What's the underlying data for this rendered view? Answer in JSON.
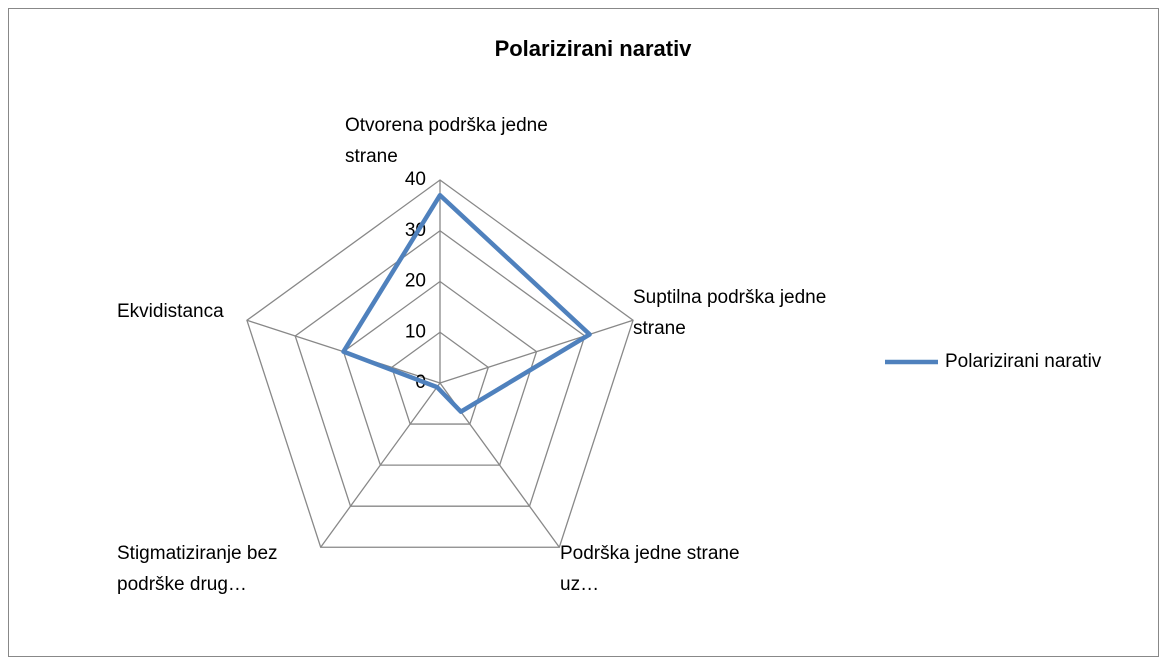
{
  "chart_data": {
    "type": "radar",
    "title": "Polarizirani narativ",
    "categories": [
      "Otvorena podrška jedne strane",
      "Suptilna podrška jedne strane",
      "Podrška jedne strane uz…",
      "Stigmatiziranje bez podrške drug…",
      "Ekvidistanca"
    ],
    "series": [
      {
        "name": "Polarizirani narativ",
        "color": "#4f81bd",
        "values": [
          37,
          31,
          7,
          1,
          20
        ]
      }
    ],
    "ylim": [
      0,
      40
    ],
    "yticks": [
      0,
      10,
      20,
      30,
      40
    ],
    "grid": true,
    "legend": "right"
  }
}
